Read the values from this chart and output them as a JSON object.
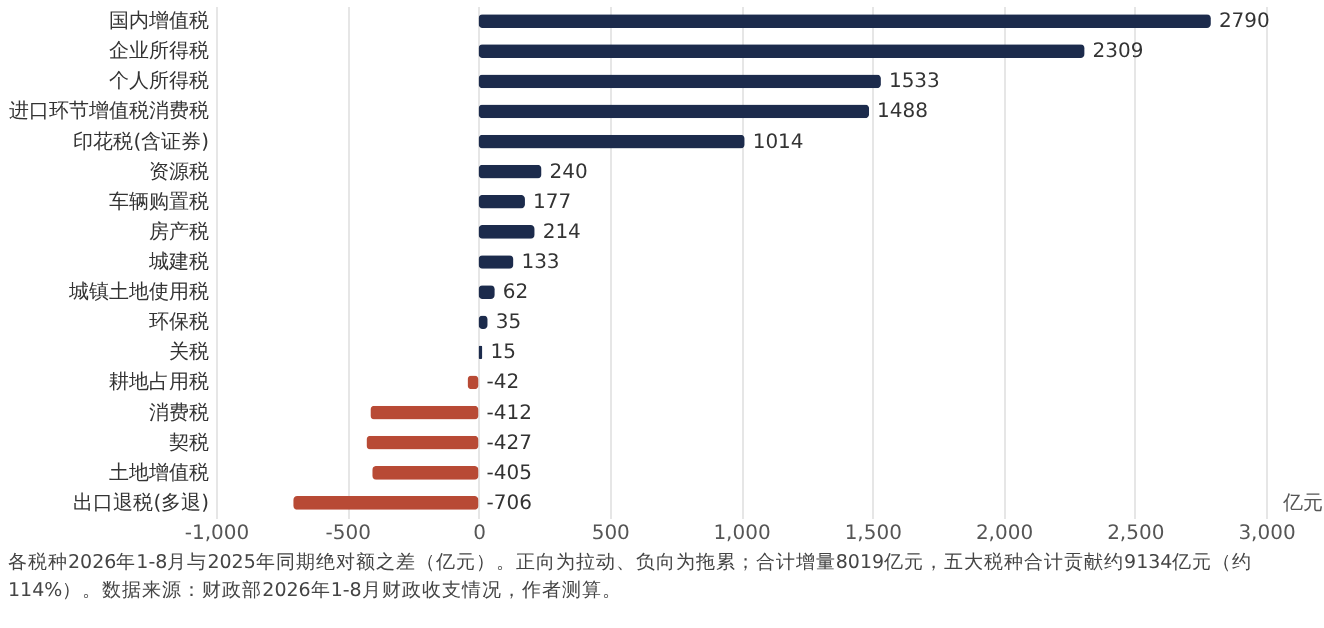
{
  "chart_data": {
    "type": "bar",
    "orientation": "horizontal",
    "categories": [
      "国内增值税",
      "企业所得税",
      "个人所得税",
      "进口环节增值税消费税",
      "印花税(含证券)",
      "资源税",
      "车辆购置税",
      "房产税",
      "城建税",
      "城镇土地使用税",
      "环保税",
      "关税",
      "耕地占用税",
      "消费税",
      "契税",
      "土地增值税",
      "出口退税(多退)"
    ],
    "values": [
      2790,
      2309,
      1533,
      1488,
      1014,
      240,
      177,
      214,
      133,
      62,
      35,
      15,
      -42,
      -412,
      -427,
      -405,
      -706
    ],
    "colors": [
      "#1c2b4c",
      "#1c2b4c",
      "#1c2b4c",
      "#1c2b4c",
      "#1c2b4c",
      "#1c2b4c",
      "#1c2b4c",
      "#1c2b4c",
      "#1c2b4c",
      "#1c2b4c",
      "#1c2b4c",
      "#1c2b4c",
      "#b84a35",
      "#b84a35",
      "#b84a35",
      "#b84a35",
      "#b84a35"
    ],
    "xlabel": "亿元",
    "xlim": [
      -1000,
      3000
    ],
    "xticks": [
      {
        "value": -1000,
        "label": "-1,000"
      },
      -500,
      0,
      500,
      {
        "value": 1000,
        "label": "1,000"
      },
      {
        "value": 1500,
        "label": "1,500"
      },
      {
        "value": 2000,
        "label": "2,000"
      },
      {
        "value": 2500,
        "label": "2,500"
      },
      {
        "value": 3000,
        "label": "3,000"
      }
    ],
    "grid": "x",
    "data_labels": true,
    "annotations": [
      "各税种2026年1-8月与2025年同期绝对额之差（亿元）。正向为拉动、负向为拖累；合计增量8019亿元，五大税种合计贡献约9134亿元（约114%）。数据来源：财政部2026年1-8月财政收支情况，作者测算。"
    ]
  }
}
